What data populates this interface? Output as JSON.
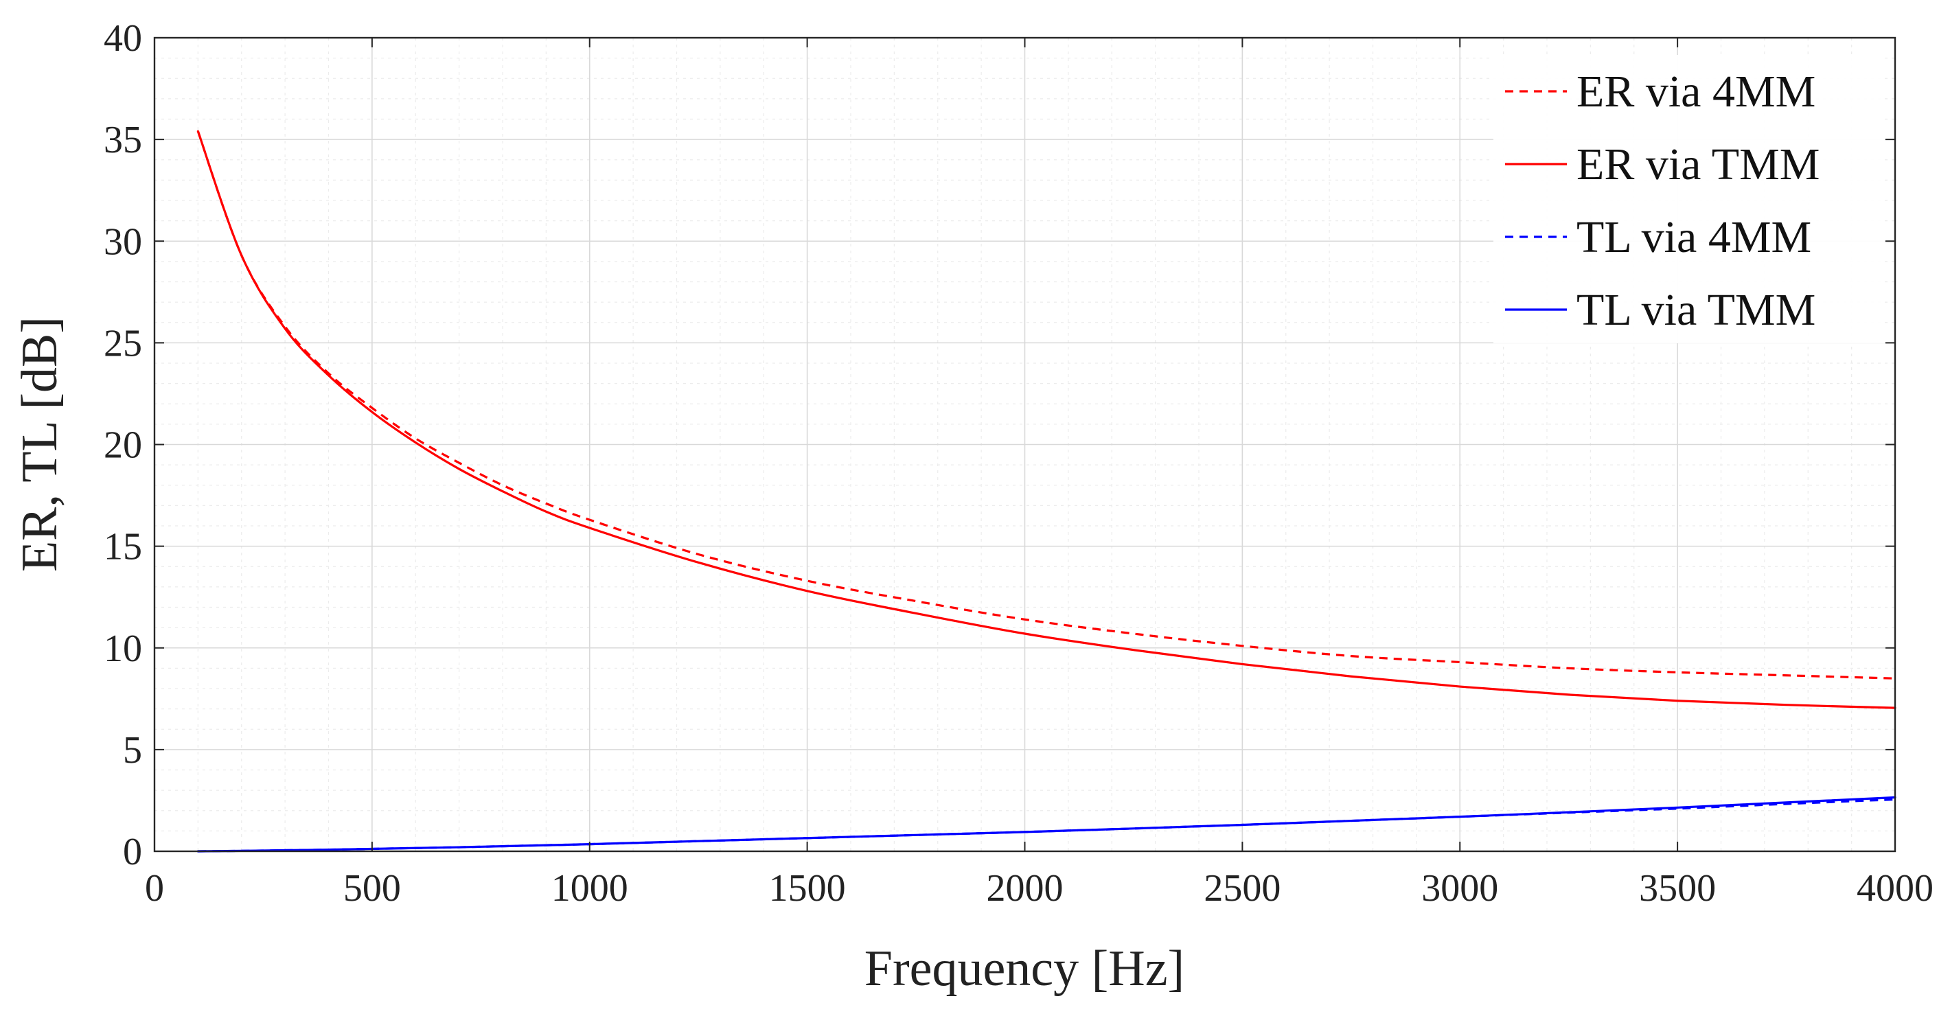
{
  "chart_data": {
    "type": "line",
    "title": "",
    "xlabel": "Frequency [Hz]",
    "ylabel": "ER, TL [dB]",
    "xlim": [
      0,
      4000
    ],
    "ylim": [
      0,
      40
    ],
    "xticks": [
      0,
      500,
      1000,
      1500,
      2000,
      2500,
      3000,
      3500,
      4000
    ],
    "yticks": [
      0,
      5,
      10,
      15,
      20,
      25,
      30,
      35,
      40
    ],
    "xtick_labels": [
      "0",
      "500",
      "1000",
      "1500",
      "2000",
      "2500",
      "3000",
      "3500",
      "4000"
    ],
    "ytick_labels": [
      "0",
      "5",
      "10",
      "15",
      "20",
      "25",
      "30",
      "35",
      "40"
    ],
    "grid": true,
    "minor_grid": true,
    "legend_location": "top-right",
    "x": [
      100,
      200,
      300,
      400,
      500,
      600,
      700,
      800,
      900,
      1000,
      1250,
      1500,
      1750,
      2000,
      2250,
      2500,
      2750,
      3000,
      3250,
      3500,
      3750,
      4000
    ],
    "series": [
      {
        "name": "ER via 4MM",
        "color": "#ff0000",
        "linestyle": "dashed",
        "values": [
          35.4,
          29.3,
          25.8,
          23.5,
          21.8,
          20.3,
          19.1,
          18.0,
          17.1,
          16.3,
          14.6,
          13.3,
          12.3,
          11.4,
          10.7,
          10.1,
          9.6,
          9.3,
          9.0,
          8.8,
          8.65,
          8.5
        ]
      },
      {
        "name": "ER via TMM",
        "color": "#ff0000",
        "linestyle": "solid",
        "values": [
          35.4,
          29.3,
          25.7,
          23.4,
          21.6,
          20.1,
          18.8,
          17.7,
          16.7,
          15.9,
          14.2,
          12.8,
          11.7,
          10.7,
          9.9,
          9.2,
          8.6,
          8.1,
          7.7,
          7.4,
          7.2,
          7.05
        ]
      },
      {
        "name": "TL via 4MM",
        "color": "#0000ff",
        "linestyle": "dashed",
        "values": [
          0.0,
          0.02,
          0.05,
          0.08,
          0.12,
          0.16,
          0.2,
          0.25,
          0.3,
          0.35,
          0.5,
          0.65,
          0.8,
          0.95,
          1.12,
          1.3,
          1.5,
          1.7,
          1.9,
          2.1,
          2.33,
          2.55
        ]
      },
      {
        "name": "TL via TMM",
        "color": "#0000ff",
        "linestyle": "solid",
        "values": [
          0.0,
          0.02,
          0.05,
          0.08,
          0.12,
          0.16,
          0.2,
          0.25,
          0.3,
          0.35,
          0.5,
          0.65,
          0.8,
          0.95,
          1.12,
          1.3,
          1.5,
          1.7,
          1.92,
          2.15,
          2.4,
          2.65
        ]
      }
    ]
  }
}
